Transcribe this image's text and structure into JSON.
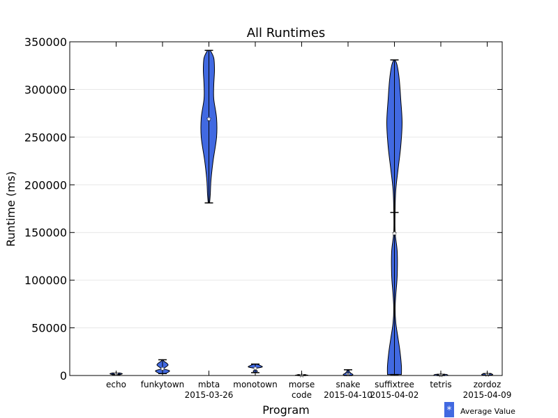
{
  "chart_data": {
    "type": "violin",
    "title": "All Runtimes",
    "xlabel": "Program",
    "ylabel": "Runtime (ms)",
    "ylim": [
      0,
      350000
    ],
    "yticks": [
      0,
      50000,
      100000,
      150000,
      200000,
      250000,
      300000,
      350000
    ],
    "ytick_labels": [
      "0",
      "50000",
      "100000",
      "150000",
      "200000",
      "250000",
      "300000",
      "350000"
    ],
    "grid": "horizontal",
    "legend": {
      "label": "Average Value",
      "marker": "*",
      "color": "#4169e1",
      "position": "bottom-right"
    },
    "fill_color": "#4169e1",
    "categories": [
      {
        "label": [
          "echo"
        ],
        "min": 1000,
        "max": 2500,
        "mean": 1800,
        "profile": [
          [
            1000,
            6
          ],
          [
            1800,
            9
          ],
          [
            2500,
            6
          ]
        ]
      },
      {
        "label": [
          "funkytown"
        ],
        "min": 2000,
        "max": 16500,
        "mean": 7000,
        "profile": [
          [
            2000,
            4
          ],
          [
            3000,
            7
          ],
          [
            5000,
            10
          ],
          [
            7000,
            2
          ],
          [
            9000,
            5
          ],
          [
            11000,
            8
          ],
          [
            13000,
            6
          ],
          [
            15000,
            2
          ],
          [
            16500,
            1
          ]
        ]
      },
      {
        "label": [
          "mbta",
          "2015-03-26"
        ],
        "min": 181000,
        "max": 341000,
        "mean": 269000,
        "profile": [
          [
            181000,
            1
          ],
          [
            190000,
            2
          ],
          [
            205000,
            3
          ],
          [
            225000,
            6
          ],
          [
            250000,
            11
          ],
          [
            270000,
            11
          ],
          [
            290000,
            7
          ],
          [
            305000,
            7
          ],
          [
            320000,
            8
          ],
          [
            333000,
            7
          ],
          [
            341000,
            2
          ]
        ]
      },
      {
        "label": [
          "monotown"
        ],
        "min": 3000,
        "max": 12000,
        "mean": 7500,
        "profile": [
          [
            3000,
            1
          ],
          [
            4500,
            3
          ],
          [
            6000,
            1
          ],
          [
            7500,
            2
          ],
          [
            9000,
            10
          ],
          [
            10500,
            7
          ],
          [
            12000,
            2
          ]
        ]
      },
      {
        "label": [
          "morse",
          "code"
        ],
        "min": 0,
        "max": 800,
        "mean": 300,
        "profile": [
          [
            0,
            8
          ],
          [
            300,
            9
          ],
          [
            800,
            5
          ]
        ]
      },
      {
        "label": [
          "snake",
          "2015-04-10"
        ],
        "min": 0,
        "max": 6000,
        "mean": 1500,
        "profile": [
          [
            0,
            5
          ],
          [
            1000,
            7
          ],
          [
            2500,
            4
          ],
          [
            4000,
            2
          ],
          [
            6000,
            1
          ]
        ]
      },
      {
        "label": [
          "suffixtree",
          "2015-04-02"
        ],
        "min": 1000,
        "max": 331000,
        "mean": 149000,
        "profile": [
          [
            1000,
            10
          ],
          [
            10000,
            10
          ],
          [
            25000,
            8
          ],
          [
            40000,
            5
          ],
          [
            55000,
            2
          ],
          [
            70000,
            1
          ],
          [
            85000,
            2
          ],
          [
            105000,
            4
          ],
          [
            130000,
            4
          ],
          [
            150000,
            1
          ],
          [
            175000,
            1
          ],
          [
            195000,
            2
          ],
          [
            215000,
            5
          ],
          [
            240000,
            9
          ],
          [
            265000,
            11
          ],
          [
            290000,
            9
          ],
          [
            310000,
            7
          ],
          [
            325000,
            4
          ],
          [
            331000,
            1
          ]
        ]
      },
      {
        "label": [
          "tetris"
        ],
        "min": 0,
        "max": 1200,
        "mean": 500,
        "profile": [
          [
            0,
            9
          ],
          [
            500,
            10
          ],
          [
            1200,
            8
          ]
        ]
      },
      {
        "label": [
          "zordoz",
          "2015-04-09"
        ],
        "min": 300,
        "max": 2000,
        "mean": 1100,
        "profile": [
          [
            300,
            6
          ],
          [
            1100,
            8
          ],
          [
            2000,
            5
          ]
        ]
      }
    ]
  }
}
